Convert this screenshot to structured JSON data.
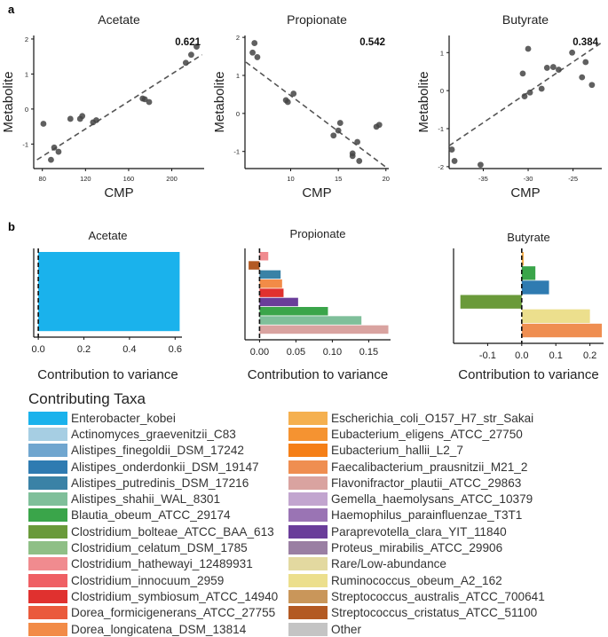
{
  "figure": {
    "panel_a_label": "a",
    "panel_b_label": "b"
  },
  "chart_data": [
    {
      "type": "scatter",
      "panel": "a",
      "title": "Acetate",
      "xlabel": "CMP",
      "ylabel": "Metabolite",
      "xlim": [
        72,
        230
      ],
      "ylim": [
        -1.7,
        2.1
      ],
      "xticks": [
        "80",
        "120",
        "160",
        "200"
      ],
      "yticks": [
        "-1",
        "0",
        "1",
        "2"
      ],
      "annotation": "0.621",
      "fit": [
        [
          75,
          -1.45
        ],
        [
          228,
          1.55
        ]
      ],
      "points": [
        [
          81,
          -0.42
        ],
        [
          88,
          -1.45
        ],
        [
          91,
          -1.1
        ],
        [
          95,
          -1.22
        ],
        [
          106,
          -0.28
        ],
        [
          115,
          -0.28
        ],
        [
          117,
          -0.2
        ],
        [
          127,
          -0.38
        ],
        [
          130,
          -0.32
        ],
        [
          173,
          0.3
        ],
        [
          175,
          0.28
        ],
        [
          179,
          0.2
        ],
        [
          213,
          1.32
        ],
        [
          218,
          1.55
        ],
        [
          223,
          1.78
        ]
      ]
    },
    {
      "type": "scatter",
      "panel": "a",
      "title": "Propionate",
      "xlabel": "CMP",
      "ylabel": "Metabolite",
      "xlim": [
        5.2,
        20.3
      ],
      "ylim": [
        -1.45,
        2.05
      ],
      "xticks": [
        "10",
        "15",
        "20"
      ],
      "yticks": [
        "-1",
        "0",
        "1",
        "2"
      ],
      "annotation": "0.542",
      "fit": [
        [
          5.3,
          1.35
        ],
        [
          20.2,
          -1.45
        ]
      ],
      "points": [
        [
          6,
          1.6
        ],
        [
          6.2,
          1.85
        ],
        [
          6.5,
          1.48
        ],
        [
          9.5,
          0.35
        ],
        [
          9.7,
          0.3
        ],
        [
          10.3,
          0.52
        ],
        [
          14.5,
          -0.58
        ],
        [
          15,
          -0.45
        ],
        [
          15.2,
          -0.25
        ],
        [
          16.5,
          -1.05
        ],
        [
          16.5,
          -1.12
        ],
        [
          17,
          -0.75
        ],
        [
          17.2,
          -1.25
        ],
        [
          19,
          -0.35
        ],
        [
          19.3,
          -0.3
        ]
      ]
    },
    {
      "type": "scatter",
      "panel": "a",
      "title": "Butyrate",
      "xlabel": "CMP",
      "ylabel": "Metabolite",
      "xlim": [
        -38.8,
        -21.8
      ],
      "ylim": [
        -2.05,
        1.45
      ],
      "xticks": [
        "-35",
        "-30",
        "-25"
      ],
      "yticks": [
        "-2",
        "-1",
        "0",
        "1"
      ],
      "annotation": "0.384",
      "fit": [
        [
          -38.8,
          -1.45
        ],
        [
          -21.9,
          1.25
        ]
      ],
      "points": [
        [
          -38.5,
          -1.55
        ],
        [
          -38.2,
          -1.85
        ],
        [
          -35.3,
          -1.95
        ],
        [
          -30.6,
          0.45
        ],
        [
          -30.4,
          -0.15
        ],
        [
          -30,
          1.1
        ],
        [
          -29.8,
          -0.05
        ],
        [
          -28.5,
          0.05
        ],
        [
          -27.9,
          0.6
        ],
        [
          -27.2,
          0.62
        ],
        [
          -26.6,
          0.55
        ],
        [
          -25.1,
          1
        ],
        [
          -24,
          0.35
        ],
        [
          -23.6,
          0.75
        ],
        [
          -22.9,
          0.15
        ]
      ]
    },
    {
      "type": "bar",
      "panel": "b",
      "orientation": "horizontal",
      "title": "Acetate",
      "xlabel": "Contribution to variance",
      "xlim": [
        -0.02,
        0.63
      ],
      "xticks": [
        [
          "0.0",
          0.0
        ],
        [
          "0.2",
          0.2
        ],
        [
          "0.4",
          0.4
        ],
        [
          "0.6",
          0.6
        ]
      ],
      "bars": [
        {
          "taxon": "Enterobacter_kobei",
          "value": 0.62,
          "color": "#1ab2ec"
        }
      ]
    },
    {
      "type": "bar",
      "panel": "b",
      "orientation": "horizontal",
      "title": "Propionate",
      "xlabel": "Contribution to variance",
      "xlim": [
        -0.02,
        0.18
      ],
      "xticks": [
        [
          "0.00",
          0.0
        ],
        [
          "0.05",
          0.05
        ],
        [
          "0.10",
          0.1
        ],
        [
          "0.15",
          0.15
        ]
      ],
      "bars": [
        {
          "taxon": "Clostridium_hathewayi_12489931",
          "value": 0.012,
          "color": "#f08b8f"
        },
        {
          "taxon": "Streptococcus_cristatus_ATCC_51100",
          "value": -0.015,
          "color": "#b35a23"
        },
        {
          "taxon": "Alistipes_putredinis_DSM_17216",
          "value": 0.029,
          "color": "#3a82a6"
        },
        {
          "taxon": "Dorea_longicatena_DSM_13814",
          "value": 0.031,
          "color": "#f28b47"
        },
        {
          "taxon": "Clostridium_symbiosum_ATCC_14940",
          "value": 0.033,
          "color": "#e0312f"
        },
        {
          "taxon": "Paraprevotella_clara_YIT_11840",
          "value": 0.053,
          "color": "#6a3d9a"
        },
        {
          "taxon": "Blautia_obeum_ATCC_29174",
          "value": 0.094,
          "color": "#3aa54a"
        },
        {
          "taxon": "Alistipes_shahii_WAL_8301",
          "value": 0.14,
          "color": "#7fbf9a"
        },
        {
          "taxon": "Flavonifractor_plautii_ATCC_29863",
          "value": 0.177,
          "color": "#d9a3a0"
        }
      ]
    },
    {
      "type": "bar",
      "panel": "b",
      "orientation": "horizontal",
      "title": "Butyrate",
      "xlabel": "Contribution to variance",
      "xlim": [
        -0.2,
        0.24
      ],
      "xticks": [
        [
          "-0.1",
          -0.1
        ],
        [
          "0.0",
          0.0
        ],
        [
          "0.1",
          0.1
        ],
        [
          "0.2",
          0.2
        ]
      ],
      "bars": [
        {
          "taxon": "Escherichia_coli_O157_H7_str_Sakai",
          "value": 0.006,
          "color": "#f5b04f"
        },
        {
          "taxon": "Blautia_obeum_ATCC_29174",
          "value": 0.04,
          "color": "#3aa54a"
        },
        {
          "taxon": "Alistipes_onderdonkii_DSM_19147",
          "value": 0.08,
          "color": "#2f7bb1"
        },
        {
          "taxon": "Clostridium_bolteae_ATCC_BAA_613",
          "value": -0.18,
          "color": "#6a9a3a"
        },
        {
          "taxon": "Ruminococcus_obeum_A2_162",
          "value": 0.2,
          "color": "#ecdf8d"
        },
        {
          "taxon": "Faecalibacterium_prausnitzii_M21_2",
          "value": 0.235,
          "color": "#ef8e51"
        }
      ]
    }
  ],
  "legend": {
    "title": "Contributing Taxa",
    "columns": [
      [
        {
          "label": "Enterobacter_kobei",
          "color": "#1ab2ec"
        },
        {
          "label": "Actinomyces_graevenitzii_C83",
          "color": "#a6cee3"
        },
        {
          "label": "Alistipes_finegoldii_DSM_17242",
          "color": "#70a6cf"
        },
        {
          "label": "Alistipes_onderdonkii_DSM_19147",
          "color": "#2f7bb1"
        },
        {
          "label": "Alistipes_putredinis_DSM_17216",
          "color": "#3a82a6"
        },
        {
          "label": "Alistipes_shahii_WAL_8301",
          "color": "#7fbf9a"
        },
        {
          "label": "Blautia_obeum_ATCC_29174",
          "color": "#3aa54a"
        },
        {
          "label": "Clostridium_bolteae_ATCC_BAA_613",
          "color": "#6a9a3a"
        },
        {
          "label": "Clostridium_celatum_DSM_1785",
          "color": "#8fbf86"
        },
        {
          "label": "Clostridium_hathewayi_12489931",
          "color": "#f08b8f"
        },
        {
          "label": "Clostridium_innocuum_2959",
          "color": "#ef5f64"
        },
        {
          "label": "Clostridium_symbiosum_ATCC_14940",
          "color": "#e0312f"
        },
        {
          "label": "Dorea_formicigenerans_ATCC_27755",
          "color": "#ea5a3c"
        },
        {
          "label": "Dorea_longicatena_DSM_13814",
          "color": "#f28b47"
        }
      ],
      [
        {
          "label": "Escherichia_coli_O157_H7_str_Sakai",
          "color": "#f5b04f"
        },
        {
          "label": "Eubacterium_eligens_ATCC_27750",
          "color": "#f59331"
        },
        {
          "label": "Eubacterium_hallii_L2_7",
          "color": "#f57f17"
        },
        {
          "label": "Faecalibacterium_prausnitzii_M21_2",
          "color": "#ef8e51"
        },
        {
          "label": "Flavonifractor_plautii_ATCC_29863",
          "color": "#d9a3a0"
        },
        {
          "label": "Gemella_haemolysans_ATCC_10379",
          "color": "#c2a5cf"
        },
        {
          "label": "Haemophilus_parainfluenzae_T3T1",
          "color": "#9a74b4"
        },
        {
          "label": "Paraprevotella_clara_YIT_11840",
          "color": "#6a3d9a"
        },
        {
          "label": "Proteus_mirabilis_ATCC_29906",
          "color": "#9a7fa3"
        },
        {
          "label": "Rare/Low-abundance",
          "color": "#e3d9a0"
        },
        {
          "label": "Ruminococcus_obeum_A2_162",
          "color": "#ecdf8d"
        },
        {
          "label": "Streptococcus_australis_ATCC_700641",
          "color": "#c9965a"
        },
        {
          "label": "Streptococcus_cristatus_ATCC_51100",
          "color": "#b35a23"
        },
        {
          "label": "Other",
          "color": "#c4c4c4"
        }
      ]
    ]
  }
}
